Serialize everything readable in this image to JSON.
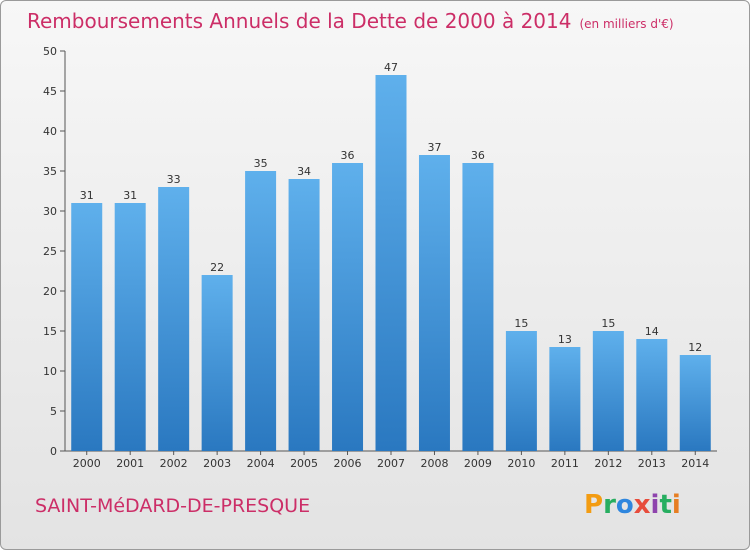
{
  "header": {
    "title": "Remboursements Annuels de la Dette de 2000 à 2014",
    "unit": "(en milliers d'€)"
  },
  "footer": {
    "city": "SAINT-MéDARD-DE-PRESQUE",
    "logo": "Proxiti"
  },
  "colors": {
    "title": "#cc2e67",
    "bar_top": "#5fb0ec",
    "bar_bottom": "#2a78c0",
    "logo_letters": [
      "#f39c12",
      "#27ae60",
      "#2e86de",
      "#e74c3c",
      "#8e44ad",
      "#27ae60",
      "#e67e22"
    ]
  },
  "chart_data": {
    "type": "bar",
    "title": "Remboursements Annuels de la Dette de 2000 à 2014",
    "categories": [
      "2000",
      "2001",
      "2002",
      "2003",
      "2004",
      "2005",
      "2006",
      "2007",
      "2008",
      "2009",
      "2010",
      "2011",
      "2012",
      "2013",
      "2014"
    ],
    "values": [
      31,
      31,
      33,
      22,
      35,
      34,
      36,
      47,
      37,
      36,
      15,
      13,
      15,
      14,
      12
    ],
    "ylim": [
      0,
      50
    ],
    "yticks": [
      0,
      5,
      10,
      15,
      20,
      25,
      30,
      35,
      40,
      45,
      50
    ],
    "grid": false
  }
}
